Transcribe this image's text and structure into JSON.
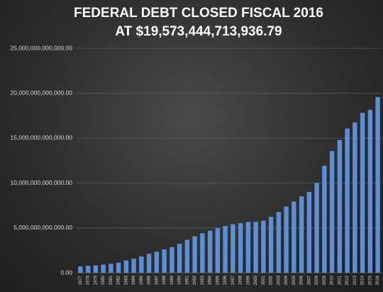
{
  "chart_data": {
    "type": "bar",
    "title": [
      "FEDERAL DEBT CLOSED FISCAL 2016",
      "AT $19,573,444,713,936.79"
    ],
    "categories": [
      "1977",
      "1978",
      "1979",
      "1980",
      "1981",
      "1982",
      "1983",
      "1984",
      "1985",
      "1986",
      "1987",
      "1988",
      "1989",
      "1990",
      "1991",
      "1992",
      "1993",
      "1994",
      "1995",
      "1996",
      "1997",
      "1998",
      "1999",
      "2000",
      "2001",
      "2002",
      "2003",
      "2004",
      "2005",
      "2006",
      "2007",
      "2008",
      "2009",
      "2010",
      "2011",
      "2012",
      "2013",
      "2014",
      "2015",
      "2016"
    ],
    "values": [
      710000000000,
      780000000000,
      830000000000,
      910000000000,
      1000000000000,
      1140000000000,
      1380000000000,
      1570000000000,
      1820000000000,
      2130000000000,
      2350000000000,
      2600000000000,
      2860000000000,
      3230000000000,
      3670000000000,
      4060000000000,
      4410000000000,
      4690000000000,
      4970000000000,
      5220000000000,
      5410000000000,
      5530000000000,
      5660000000000,
      5670000000000,
      5810000000000,
      6230000000000,
      6780000000000,
      7380000000000,
      7930000000000,
      8510000000000,
      9010000000000,
      10020000000000,
      11910000000000,
      13560000000000,
      14790000000000,
      16070000000000,
      16740000000000,
      17820000000000,
      18150000000000,
      19573444713936.79
    ],
    "color": "#5b8fd6",
    "ylim": [
      0,
      25000000000000
    ],
    "yticks": [
      {
        "value": 0,
        "label": "0.00"
      },
      {
        "value": 5000000000000,
        "label": "5,000,000,000,000.00"
      },
      {
        "value": 10000000000000,
        "label": "10,000,000,000,000.00"
      },
      {
        "value": 15000000000000,
        "label": "15,000,000,000,000.00"
      },
      {
        "value": 20000000000000,
        "label": "20,000,000,000,000.00"
      },
      {
        "value": 25000000000000,
        "label": "25,000,000,000,000.00"
      }
    ],
    "grid": true
  }
}
